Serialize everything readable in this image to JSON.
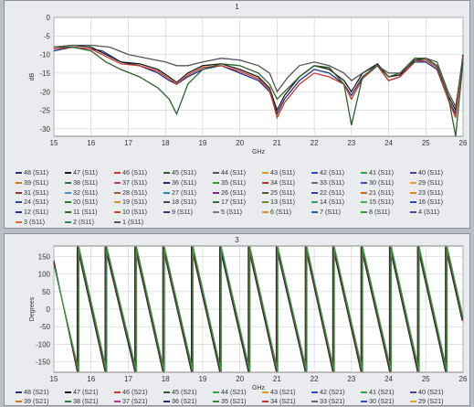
{
  "chart_data": [
    {
      "type": "line",
      "title": "1",
      "xlabel": "GHz",
      "ylabel": "dB",
      "xlim": [
        15,
        26
      ],
      "ylim": [
        -32,
        0
      ],
      "x_ticks": [
        15,
        16,
        17,
        18,
        19,
        20,
        21,
        22,
        23,
        24,
        25,
        26
      ],
      "y_ticks": [
        0,
        -5,
        -10,
        -15,
        -20,
        -25,
        -30
      ],
      "grid": true,
      "legend_position": "bottom",
      "series": [
        {
          "name": "48 (S11)",
          "color": "#203080",
          "x": [
            15,
            15.5,
            16,
            16.3,
            16.8,
            17.3,
            17.8,
            18.1,
            18.3,
            18.6,
            19,
            19.5,
            20,
            20.5,
            20.8,
            21,
            21.2,
            21.6,
            22,
            22.4,
            22.8,
            23,
            23.3,
            23.7,
            24,
            24.3,
            24.7,
            25,
            25.3,
            25.6,
            25.8,
            26
          ],
          "y": [
            -9,
            -8,
            -8.5,
            -9,
            -12,
            -13,
            -15,
            -17,
            -18,
            -16,
            -14,
            -13,
            -15,
            -17,
            -20,
            -26,
            -22,
            -17,
            -14,
            -15,
            -18,
            -21,
            -16,
            -13,
            -17,
            -16,
            -12,
            -12,
            -14,
            -22,
            -26,
            -11
          ]
        },
        {
          "name": "47 (S11)",
          "color": "#1a1a1a",
          "x": [
            15,
            15.5,
            16,
            16.4,
            16.8,
            17.3,
            17.8,
            18.1,
            18.3,
            18.6,
            19,
            19.5,
            20,
            20.5,
            20.8,
            21,
            21.2,
            21.6,
            22,
            22.4,
            22.8,
            23,
            23.3,
            23.7,
            24,
            24.3,
            24.7,
            25,
            25.3,
            25.6,
            25.8,
            26
          ],
          "y": [
            -8,
            -7.5,
            -8,
            -10,
            -12,
            -12.5,
            -14,
            -16,
            -17.5,
            -15,
            -13,
            -12.5,
            -14,
            -16,
            -19,
            -25,
            -21,
            -16,
            -13,
            -14,
            -17,
            -20,
            -15,
            -12.5,
            -16,
            -15.5,
            -11.5,
            -11,
            -13,
            -21,
            -25,
            -10
          ]
        },
        {
          "name": "46 (S11)",
          "color": "#c83a2a",
          "x": [
            15,
            15.5,
            16,
            16.4,
            16.8,
            17.3,
            17.8,
            18.1,
            18.3,
            18.6,
            19,
            19.5,
            20,
            20.5,
            20.8,
            21,
            21.2,
            21.6,
            22,
            22.4,
            22.8,
            23,
            23.3,
            23.7,
            24,
            24.3,
            24.7,
            25,
            25.3,
            25.6,
            25.8,
            26
          ],
          "y": [
            -8.5,
            -8,
            -8.5,
            -10.5,
            -12.5,
            -13,
            -14.5,
            -16.5,
            -18,
            -15.5,
            -13.5,
            -13,
            -14.5,
            -16.5,
            -19.5,
            -27,
            -23,
            -18,
            -15,
            -16,
            -18,
            -22,
            -16.5,
            -13,
            -17,
            -16,
            -12,
            -11.5,
            -13.5,
            -22,
            -27,
            -10.5
          ]
        },
        {
          "name": "45 (S11)",
          "color": "#2f5e2f",
          "x": [
            15,
            15.5,
            16,
            16.4,
            16.8,
            17.3,
            17.8,
            18.1,
            18.3,
            18.6,
            19,
            19.5,
            20,
            20.5,
            20.8,
            21,
            21.2,
            21.6,
            22,
            22.4,
            22.8,
            23,
            23.3,
            23.7,
            24,
            24.3,
            24.7,
            25,
            25.3,
            25.6,
            25.8,
            26
          ],
          "y": [
            -8,
            -8,
            -9,
            -12,
            -14,
            -16,
            -19,
            -22,
            -26,
            -18,
            -14,
            -12.5,
            -13,
            -15,
            -18,
            -22,
            -20,
            -16,
            -13,
            -13.5,
            -18,
            -29,
            -16,
            -13,
            -16,
            -15,
            -11,
            -11,
            -13,
            -21,
            -32,
            -12
          ]
        },
        {
          "name": "44 (S11)",
          "color": "#555555",
          "x": [
            15,
            15.5,
            16,
            16.5,
            17,
            17.5,
            18,
            18.3,
            18.6,
            19,
            19.5,
            20,
            20.5,
            20.8,
            21,
            21.3,
            21.6,
            22,
            22.4,
            22.8,
            23,
            23.3,
            23.7,
            24,
            24.3,
            24.7,
            25,
            25.3,
            25.6,
            25.8,
            26
          ],
          "y": [
            -8,
            -7.5,
            -7.5,
            -8,
            -10,
            -11,
            -12,
            -13,
            -13,
            -12,
            -11,
            -11.5,
            -13,
            -15,
            -20,
            -16,
            -13,
            -12,
            -13,
            -15,
            -17,
            -15,
            -13,
            -15,
            -15,
            -12,
            -11,
            -12,
            -20,
            -24,
            -11
          ]
        }
      ],
      "legend": [
        {
          "label": "48 (S11)",
          "color": "#203080"
        },
        {
          "label": "47 (S11)",
          "color": "#1a1a1a"
        },
        {
          "label": "46 (S11)",
          "color": "#c83a2a"
        },
        {
          "label": "45 (S11)",
          "color": "#2f5e2f"
        },
        {
          "label": "44 (S11)",
          "color": "#555555"
        },
        {
          "label": "43 (S11)",
          "color": "#d8a020"
        },
        {
          "label": "42 (S11)",
          "color": "#2a4fb0"
        },
        {
          "label": "41 (S11)",
          "color": "#3aa04a"
        },
        {
          "label": "40 (S11)",
          "color": "#5a3aa0"
        },
        {
          "label": "39 (S11)",
          "color": "#d07a20"
        },
        {
          "label": "38 (S11)",
          "color": "#2a7a3a"
        },
        {
          "label": "37 (S11)",
          "color": "#b03a8a"
        },
        {
          "label": "36 (S11)",
          "color": "#2a2a70"
        },
        {
          "label": "35 (S11)",
          "color": "#3a8a3a"
        },
        {
          "label": "34 (S11)",
          "color": "#c03030"
        },
        {
          "label": "33 (S11)",
          "color": "#6a6a6a"
        },
        {
          "label": "30 (S11)",
          "color": "#3050c0"
        },
        {
          "label": "29 (S11)",
          "color": "#e0a030"
        },
        {
          "label": "31 (S11)",
          "color": "#8a3a2a"
        },
        {
          "label": "32 (S11)",
          "color": "#4a8ad0"
        },
        {
          "label": "28 (S11)",
          "color": "#9a5a2a"
        },
        {
          "label": "27 (S11)",
          "color": "#2a8aa0"
        },
        {
          "label": "26 (S11)",
          "color": "#7a2a7a"
        },
        {
          "label": "25 (S11)",
          "color": "#5a5a2a"
        },
        {
          "label": "22 (S11)",
          "color": "#3a3aa0"
        },
        {
          "label": "21 (S11)",
          "color": "#c06a2a"
        },
        {
          "label": "23 (S11)",
          "color": "#e08a20"
        },
        {
          "label": "24 (S11)",
          "color": "#2a4a8a"
        },
        {
          "label": "20 (S11)",
          "color": "#2a7a2a"
        },
        {
          "label": "19 (S11)",
          "color": "#d0902a"
        },
        {
          "label": "18 (S11)",
          "color": "#4a4a4a"
        },
        {
          "label": "17 (S11)",
          "color": "#3a6a3a"
        },
        {
          "label": "13 (S11)",
          "color": "#6a8a3a"
        },
        {
          "label": "14 (S11)",
          "color": "#3a9a6a"
        },
        {
          "label": "15 (S11)",
          "color": "#4ab04a"
        },
        {
          "label": "16 (S11)",
          "color": "#2a4ac0"
        },
        {
          "label": "12 (S11)",
          "color": "#2a2a9a"
        },
        {
          "label": "11 (S11)",
          "color": "#2a6a2a"
        },
        {
          "label": "10 (S11)",
          "color": "#c04a2a"
        },
        {
          "label": "9 (S11)",
          "color": "#3a3a6a"
        },
        {
          "label": "5 (S11)",
          "color": "#7a7a7a"
        },
        {
          "label": "6 (S11)",
          "color": "#d09030"
        },
        {
          "label": "7 (S11)",
          "color": "#2a5ab0"
        },
        {
          "label": "8 (S11)",
          "color": "#3a9a3a"
        },
        {
          "label": "4 (S11)",
          "color": "#6a3aa0"
        },
        {
          "label": "3 (S11)",
          "color": "#d06a2a"
        },
        {
          "label": "2 (S11)",
          "color": "#2a8a4a"
        },
        {
          "label": "1 (S11)",
          "color": "#555555"
        }
      ]
    },
    {
      "type": "line",
      "title": "3",
      "xlabel": "GHz",
      "ylabel": "Degrees",
      "xlim": [
        15,
        26
      ],
      "ylim": [
        -180,
        180
      ],
      "x_ticks": [
        15,
        16,
        17,
        18,
        19,
        20,
        21,
        22,
        23,
        24,
        25,
        26
      ],
      "y_ticks": [
        150,
        100,
        50,
        0,
        -50,
        -100,
        -150
      ],
      "grid": true,
      "legend_position": "bottom",
      "phase_wrap_frequencies": [
        15.65,
        16.4,
        17.2,
        17.95,
        18.72,
        19.48,
        20.25,
        21.0,
        21.78,
        22.52,
        23.28,
        24.05,
        24.8,
        25.55
      ],
      "series": [
        {
          "name": "48 (S21)",
          "color": "#203080"
        },
        {
          "name": "47 (S21)",
          "color": "#1a1a1a"
        },
        {
          "name": "46 (S21)",
          "color": "#c83a2a"
        },
        {
          "name": "45 (S21)",
          "color": "#2f5e2f"
        },
        {
          "name": "44 (S21)",
          "color": "#3aa04a"
        }
      ],
      "legend": [
        {
          "label": "48 (S21)",
          "color": "#203080"
        },
        {
          "label": "47 (S21)",
          "color": "#1a1a1a"
        },
        {
          "label": "46 (S21)",
          "color": "#c83a2a"
        },
        {
          "label": "45 (S21)",
          "color": "#2f5e2f"
        },
        {
          "label": "44 (S21)",
          "color": "#3aa04a"
        },
        {
          "label": "43 (S21)",
          "color": "#d8a020"
        },
        {
          "label": "42 (S21)",
          "color": "#2a4fb0"
        },
        {
          "label": "41 (S21)",
          "color": "#3aa04a"
        },
        {
          "label": "40 (S21)",
          "color": "#5a3aa0"
        },
        {
          "label": "39 (S21)",
          "color": "#d07a20"
        },
        {
          "label": "38 (S21)",
          "color": "#2a7a3a"
        },
        {
          "label": "37 (S21)",
          "color": "#b03a8a"
        },
        {
          "label": "36 (S21)",
          "color": "#2a2a70"
        },
        {
          "label": "35 (S21)",
          "color": "#3a8a3a"
        },
        {
          "label": "34 (S21)",
          "color": "#c03030"
        },
        {
          "label": "33 (S21)",
          "color": "#6a6a6a"
        },
        {
          "label": "30 (S21)",
          "color": "#3050c0"
        },
        {
          "label": "29 (S21)",
          "color": "#e0a030"
        }
      ]
    }
  ]
}
